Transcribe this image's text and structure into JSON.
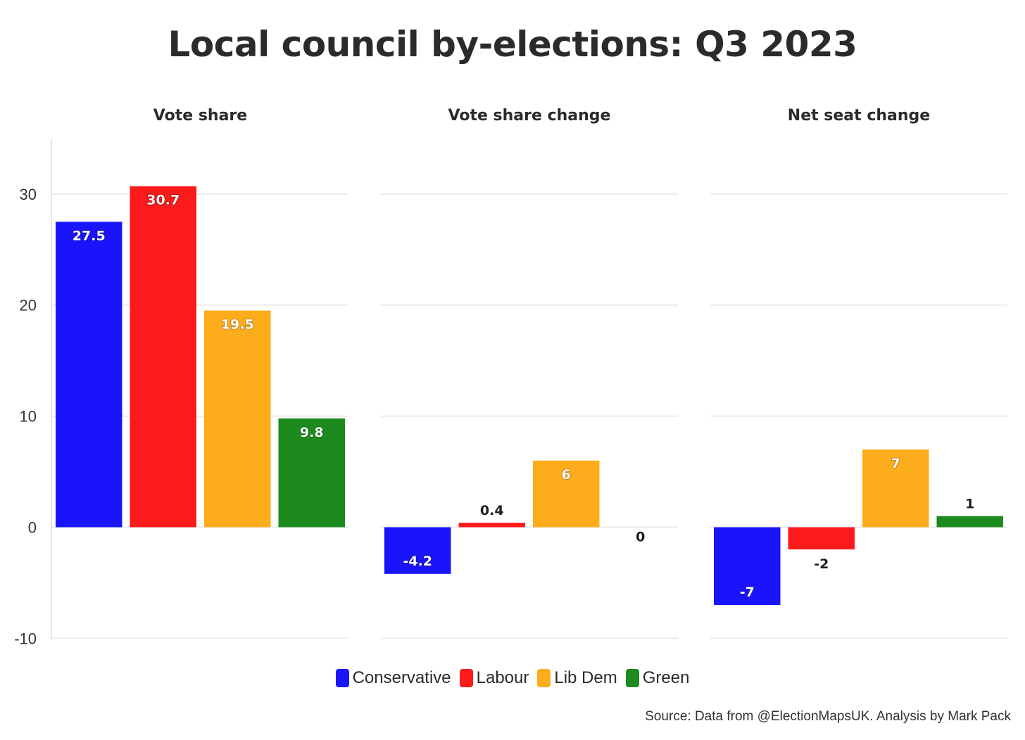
{
  "title": "Local council by-elections: Q3 2023",
  "source": "Source: Data from @ElectionMapsUK. Analysis by Mark Pack",
  "legend": [
    {
      "name": "Conservative",
      "color": "#1a14fa"
    },
    {
      "name": "Labour",
      "color": "#fc1a1a"
    },
    {
      "name": "Lib Dem",
      "color": "#fdac1c"
    },
    {
      "name": "Green",
      "color": "#1c8a1c"
    }
  ],
  "chart_data": {
    "type": "bar",
    "facets": [
      "Vote share",
      "Vote share change",
      "Net seat change"
    ],
    "categories": [
      "Conservative",
      "Labour",
      "Lib Dem",
      "Green"
    ],
    "series": [
      {
        "facet": "Vote share",
        "values": [
          27.5,
          30.7,
          19.5,
          9.8
        ],
        "labels": [
          "27.5",
          "30.7",
          "19.5",
          "9.8"
        ]
      },
      {
        "facet": "Vote share change",
        "values": [
          -4.2,
          0.4,
          6,
          0
        ],
        "labels": [
          "-4.2",
          "0.4",
          "6",
          "0"
        ]
      },
      {
        "facet": "Net seat change",
        "values": [
          -7,
          -2,
          7,
          1
        ],
        "labels": [
          "-7",
          "-2",
          "7",
          "1"
        ]
      }
    ],
    "yticks": [
      30,
      20,
      10,
      0,
      -10
    ],
    "ylim": [
      -10,
      35
    ],
    "grid": true,
    "shared_y_axis": true,
    "legend_position": "bottom"
  }
}
